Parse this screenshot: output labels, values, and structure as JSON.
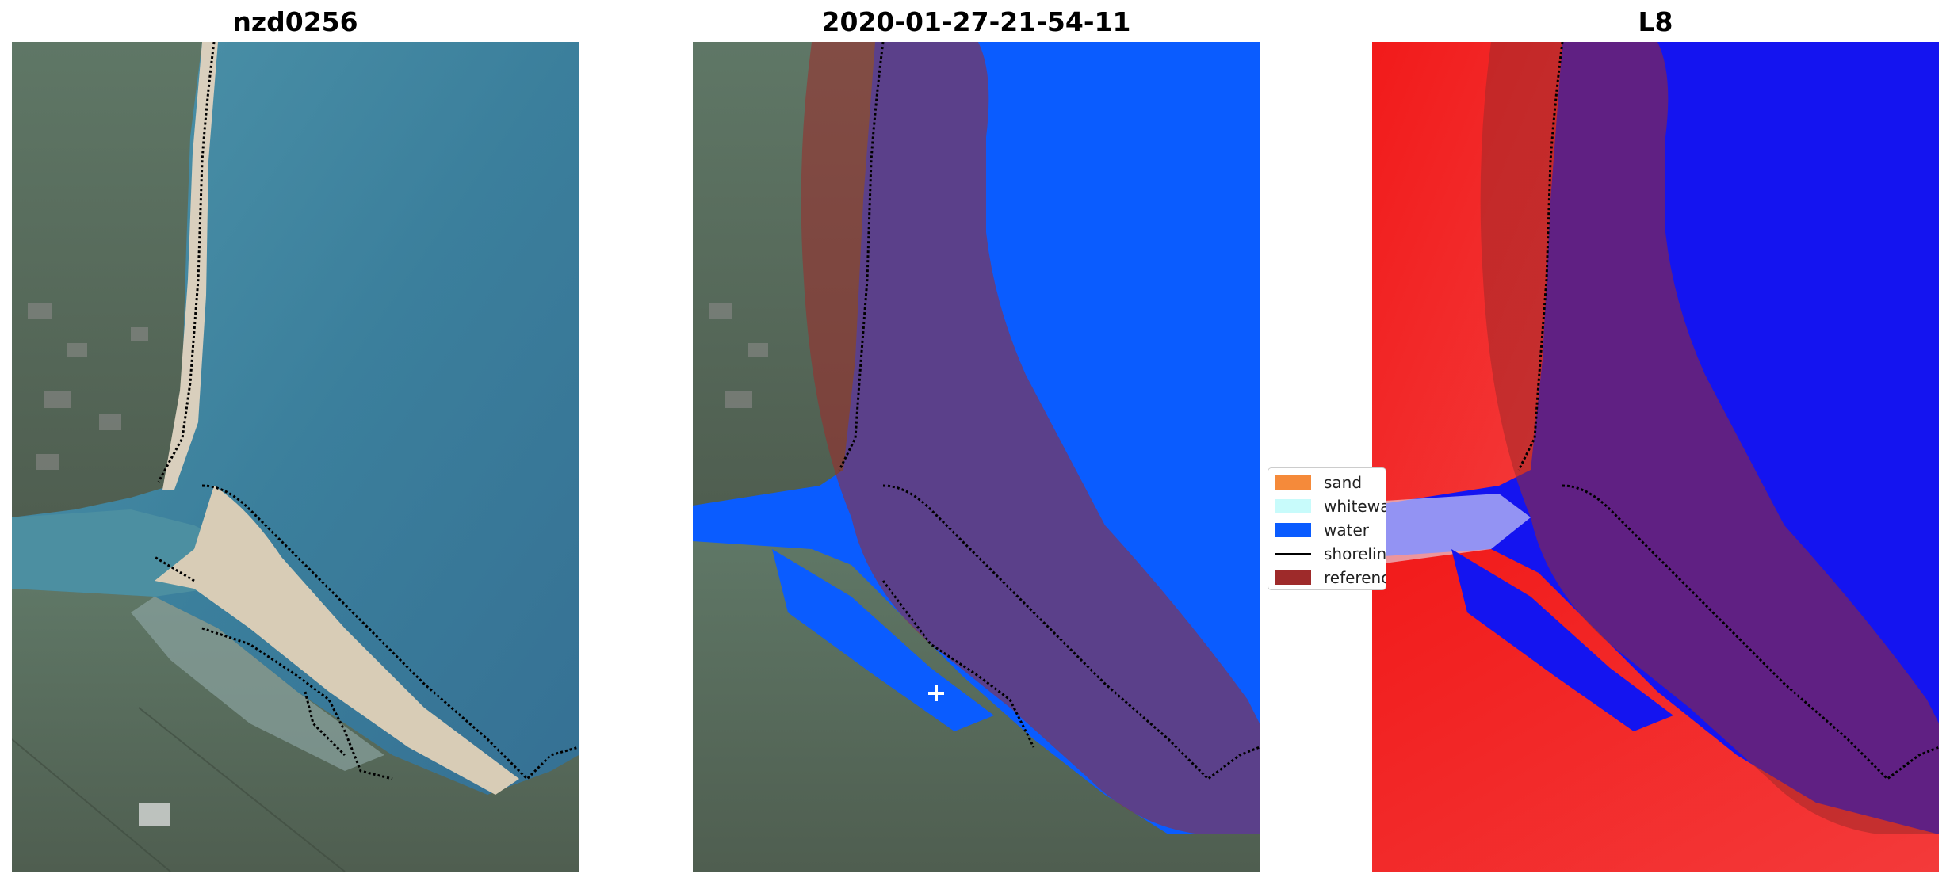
{
  "panels": [
    {
      "title": "nzd0256"
    },
    {
      "title": "2020-01-27-21-54-11"
    },
    {
      "title": "L8"
    }
  ],
  "legend": {
    "items": [
      {
        "label": "sand",
        "color": "#f58a3a",
        "kind": "patch"
      },
      {
        "label": "whitewater",
        "color": "#c8fbfb",
        "kind": "patch"
      },
      {
        "label": "water",
        "color": "#0a5cff",
        "kind": "patch"
      },
      {
        "label": "shoreline",
        "color": "#000000",
        "kind": "line"
      },
      {
        "label": "reference shoreline buffer",
        "color": "#9e2a2a",
        "kind": "patch"
      }
    ]
  },
  "colors": {
    "sea_rgb": "#3e7f9b",
    "land_rgb": "#5b6e5c",
    "sand_rgb": "#d8cdb8",
    "water_class": "#0a5cff",
    "buffer": "#9e2a2a",
    "index_water": "#1414f0",
    "index_land": "#f01414"
  }
}
